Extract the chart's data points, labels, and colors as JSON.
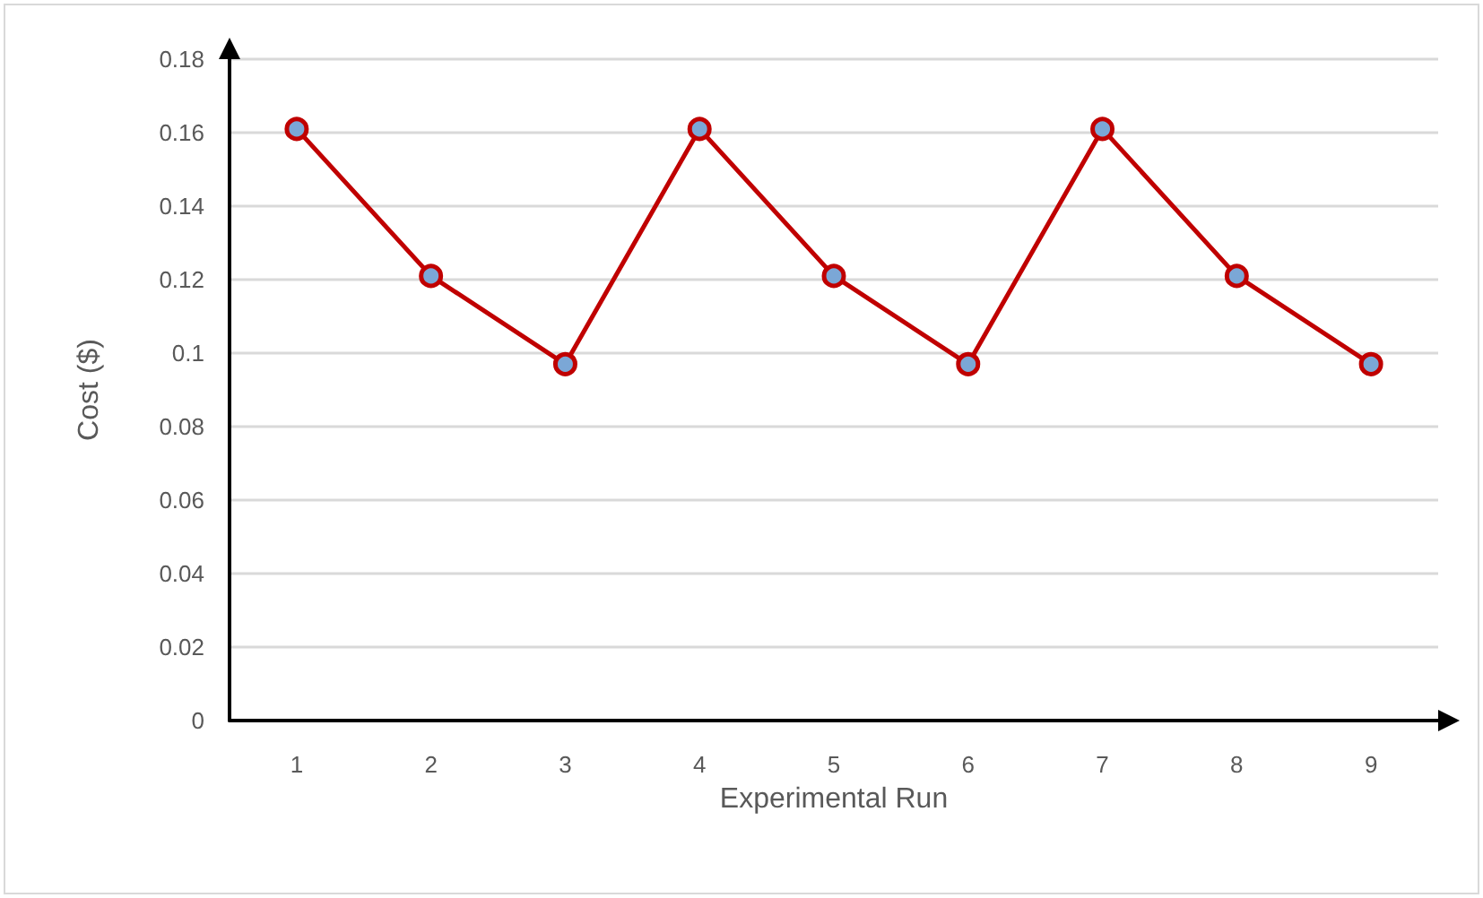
{
  "chart_data": {
    "type": "line",
    "xlabel": "Experimental Run",
    "ylabel": "Cost ($)",
    "categories": [
      "1",
      "2",
      "3",
      "4",
      "5",
      "6",
      "7",
      "8",
      "9"
    ],
    "series": [
      {
        "color": "#c00000",
        "values": [
          0.161,
          0.121,
          0.097,
          0.161,
          0.121,
          0.097,
          0.161,
          0.121,
          0.097
        ]
      }
    ],
    "ylim": [
      0,
      0.18
    ],
    "yticks": [
      0,
      0.02,
      0.04,
      0.06,
      0.08,
      0.1,
      0.12,
      0.14,
      0.16,
      0.18
    ],
    "grid": "y",
    "marker": "circle",
    "line_style": "solid"
  }
}
